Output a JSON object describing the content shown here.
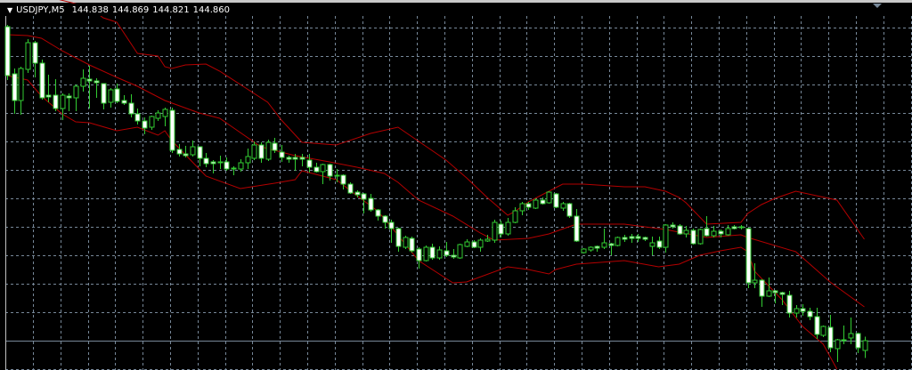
{
  "header": {
    "symbol": "USDJPY,M5",
    "open": "144.838",
    "high": "144.869",
    "low": "144.821",
    "close": "144.860",
    "menu_icon": "triangle-down-icon"
  },
  "colors": {
    "background": "#000000",
    "grid": "#778899",
    "bull_body": "#000000",
    "bear_body": "#ffffff",
    "candle_outline": "#32cd32",
    "bands": "#b40000",
    "bid_line": "#778899"
  },
  "chart_data": {
    "type": "candlestick",
    "timeframe": "M5",
    "grid": true,
    "bid": 144.86,
    "candles": [
      [
        145.566,
        145.57,
        145.446,
        145.456
      ],
      [
        145.46,
        145.472,
        145.37,
        145.4
      ],
      [
        145.4,
        145.476,
        145.368,
        145.472
      ],
      [
        145.47,
        145.538,
        145.462,
        145.53
      ],
      [
        145.53,
        145.534,
        145.452,
        145.484
      ],
      [
        145.484,
        145.492,
        145.402,
        145.406
      ],
      [
        145.412,
        145.458,
        145.396,
        145.408
      ],
      [
        145.412,
        145.448,
        145.376,
        145.382
      ],
      [
        145.382,
        145.416,
        145.356,
        145.412
      ],
      [
        145.41,
        145.416,
        145.376,
        145.406
      ],
      [
        145.406,
        145.436,
        145.376,
        145.432
      ],
      [
        145.432,
        145.47,
        145.42,
        145.45
      ],
      [
        145.448,
        145.478,
        145.382,
        145.444
      ],
      [
        145.444,
        145.45,
        145.406,
        145.44
      ],
      [
        145.438,
        145.438,
        145.38,
        145.394
      ],
      [
        145.396,
        145.428,
        145.384,
        145.424
      ],
      [
        145.426,
        145.438,
        145.394,
        145.398
      ],
      [
        145.4,
        145.412,
        145.39,
        145.394
      ],
      [
        145.394,
        145.414,
        145.362,
        145.37
      ],
      [
        145.37,
        145.382,
        145.346,
        145.354
      ],
      [
        145.354,
        145.362,
        145.324,
        145.338
      ],
      [
        145.34,
        145.366,
        145.334,
        145.364
      ],
      [
        145.36,
        145.378,
        145.354,
        145.372
      ],
      [
        145.364,
        145.384,
        145.342,
        145.38
      ],
      [
        145.378,
        145.384,
        145.282,
        145.288
      ],
      [
        145.29,
        145.302,
        145.274,
        145.28
      ],
      [
        145.28,
        145.298,
        145.272,
        145.276
      ],
      [
        145.278,
        145.31,
        145.274,
        145.296
      ],
      [
        145.296,
        145.296,
        145.252,
        145.27
      ],
      [
        145.27,
        145.282,
        145.25,
        145.258
      ],
      [
        145.262,
        145.266,
        145.236,
        145.258
      ],
      [
        145.262,
        145.276,
        145.246,
        145.26
      ],
      [
        145.262,
        145.272,
        145.242,
        145.246
      ],
      [
        145.248,
        145.252,
        145.232,
        145.246
      ],
      [
        145.246,
        145.268,
        145.24,
        145.26
      ],
      [
        145.26,
        145.292,
        145.246,
        145.274
      ],
      [
        145.27,
        145.308,
        145.266,
        145.3
      ],
      [
        145.3,
        145.306,
        145.26,
        145.27
      ],
      [
        145.268,
        145.312,
        145.264,
        145.306
      ],
      [
        145.304,
        145.316,
        145.282,
        145.288
      ],
      [
        145.284,
        145.3,
        145.262,
        145.272
      ],
      [
        145.272,
        145.276,
        145.26,
        145.268
      ],
      [
        145.272,
        145.28,
        145.242,
        145.268
      ],
      [
        145.272,
        145.28,
        145.252,
        145.268
      ],
      [
        145.266,
        145.28,
        145.238,
        145.25
      ],
      [
        145.25,
        145.26,
        145.238,
        145.24
      ],
      [
        145.24,
        145.258,
        145.212,
        145.256
      ],
      [
        145.256,
        145.258,
        145.22,
        145.23
      ],
      [
        145.232,
        145.246,
        145.216,
        145.23
      ],
      [
        145.232,
        145.234,
        145.2,
        145.212
      ],
      [
        145.212,
        145.216,
        145.19,
        145.192
      ],
      [
        145.194,
        145.198,
        145.182,
        145.188
      ],
      [
        145.19,
        145.192,
        145.146,
        145.178
      ],
      [
        145.18,
        145.19,
        145.15,
        145.154
      ],
      [
        145.154,
        145.156,
        145.13,
        145.14
      ],
      [
        145.14,
        145.142,
        145.112,
        145.126
      ],
      [
        145.126,
        145.132,
        145.08,
        145.112
      ],
      [
        145.112,
        145.114,
        145.06,
        145.072
      ],
      [
        145.07,
        145.096,
        145.066,
        145.092
      ],
      [
        145.09,
        145.094,
        145.058,
        145.062
      ],
      [
        145.066,
        145.07,
        145.022,
        145.04
      ],
      [
        145.04,
        145.074,
        145.038,
        145.07
      ],
      [
        145.07,
        145.078,
        145.042,
        145.046
      ],
      [
        145.046,
        145.072,
        145.042,
        145.064
      ],
      [
        145.062,
        145.082,
        145.048,
        145.052
      ],
      [
        145.052,
        145.066,
        145.044,
        145.048
      ],
      [
        145.046,
        145.078,
        145.044,
        145.076
      ],
      [
        145.072,
        145.088,
        145.07,
        145.082
      ],
      [
        145.082,
        145.086,
        145.068,
        145.07
      ],
      [
        145.07,
        145.09,
        145.06,
        145.086
      ],
      [
        145.084,
        145.098,
        145.082,
        145.088
      ],
      [
        145.086,
        145.132,
        145.08,
        145.126
      ],
      [
        145.122,
        145.13,
        145.092,
        145.1
      ],
      [
        145.1,
        145.136,
        145.096,
        145.126
      ],
      [
        145.126,
        145.16,
        145.124,
        145.152
      ],
      [
        145.152,
        145.172,
        145.142,
        145.168
      ],
      [
        145.168,
        145.172,
        145.154,
        145.16
      ],
      [
        145.158,
        145.18,
        145.156,
        145.176
      ],
      [
        145.176,
        145.182,
        145.166,
        145.168
      ],
      [
        145.17,
        145.196,
        145.168,
        145.194
      ],
      [
        145.19,
        145.192,
        145.158,
        145.16
      ],
      [
        145.158,
        145.172,
        145.152,
        145.168
      ],
      [
        145.168,
        145.17,
        145.136,
        145.14
      ],
      [
        145.14,
        145.156,
        145.082,
        145.084
      ],
      [
        145.058,
        145.068,
        145.056,
        145.066
      ],
      [
        145.064,
        145.072,
        145.06,
        145.07
      ],
      [
        145.072,
        145.074,
        145.06,
        145.068
      ],
      [
        145.07,
        145.112,
        145.066,
        145.08
      ],
      [
        145.078,
        145.08,
        145.052,
        145.074
      ],
      [
        145.074,
        145.094,
        145.072,
        145.092
      ],
      [
        145.092,
        145.098,
        145.082,
        145.088
      ],
      [
        145.094,
        145.1,
        145.08,
        145.09
      ],
      [
        145.094,
        145.1,
        145.082,
        145.09
      ],
      [
        145.092,
        145.094,
        145.084,
        145.088
      ],
      [
        145.072,
        145.094,
        145.052,
        145.08
      ],
      [
        145.084,
        145.094,
        145.066,
        145.07
      ],
      [
        145.07,
        145.122,
        145.058,
        145.12
      ],
      [
        145.12,
        145.126,
        145.112,
        145.116
      ],
      [
        145.118,
        145.122,
        145.098,
        145.1
      ],
      [
        145.1,
        145.118,
        145.092,
        145.108
      ],
      [
        145.108,
        145.112,
        145.076,
        145.078
      ],
      [
        145.078,
        145.112,
        145.076,
        145.11
      ],
      [
        145.112,
        145.14,
        145.094,
        145.096
      ],
      [
        145.096,
        145.118,
        145.092,
        145.106
      ],
      [
        145.106,
        145.11,
        145.092,
        145.1
      ],
      [
        145.098,
        145.12,
        145.096,
        145.112
      ],
      [
        145.116,
        145.12,
        145.11,
        145.112
      ],
      [
        145.114,
        145.12,
        145.11,
        145.116
      ],
      [
        145.112,
        145.114,
        144.978,
        144.99
      ],
      [
        144.99,
        145.034,
        144.978,
        144.996
      ],
      [
        144.996,
        144.998,
        144.936,
        144.96
      ],
      [
        144.96,
        145.002,
        144.958,
        144.972
      ],
      [
        144.972,
        144.974,
        144.944,
        144.968
      ],
      [
        144.968,
        144.97,
        144.94,
        144.964
      ],
      [
        144.962,
        144.972,
        144.912,
        144.922
      ],
      [
        144.922,
        144.94,
        144.912,
        144.932
      ],
      [
        144.932,
        144.942,
        144.916,
        144.926
      ],
      [
        144.926,
        144.934,
        144.906,
        144.914
      ],
      [
        144.914,
        144.934,
        144.864,
        144.874
      ],
      [
        144.872,
        144.894,
        144.868,
        144.892
      ],
      [
        144.89,
        144.918,
        144.834,
        144.844
      ],
      [
        144.842,
        144.864,
        144.812,
        144.862
      ],
      [
        144.862,
        144.894,
        144.852,
        144.86
      ],
      [
        144.866,
        144.912,
        144.852,
        144.876
      ],
      [
        144.876,
        144.878,
        144.832,
        144.844
      ],
      [
        144.838,
        144.869,
        144.821,
        144.86
      ]
    ],
    "candle_fields": [
      "open",
      "high",
      "low",
      "close"
    ],
    "bands": {
      "upper": [
        [
          1,
          145.656
        ],
        [
          13,
          145.61
        ],
        [
          15,
          145.586
        ],
        [
          17,
          145.576
        ],
        [
          20,
          145.506
        ],
        [
          23,
          145.5
        ],
        [
          24,
          145.476
        ],
        [
          25,
          145.472
        ],
        [
          27,
          145.48
        ],
        [
          30,
          145.482
        ],
        [
          32,
          145.466
        ],
        [
          36,
          145.426
        ],
        [
          39,
          145.396
        ],
        [
          41,
          145.356
        ],
        [
          44,
          145.306
        ],
        [
          49,
          145.3
        ],
        [
          54,
          145.326
        ],
        [
          58,
          145.34
        ],
        [
          65,
          145.266
        ],
        [
          68,
          145.226
        ],
        [
          71,
          145.182
        ],
        [
          74,
          145.142
        ],
        [
          75,
          145.15
        ],
        [
          77,
          145.172
        ],
        [
          80,
          145.196
        ],
        [
          82,
          145.212
        ],
        [
          85,
          145.212
        ],
        [
          91,
          145.206
        ],
        [
          94,
          145.206
        ],
        [
          97,
          145.196
        ],
        [
          99,
          145.182
        ],
        [
          100,
          145.17
        ],
        [
          103,
          145.122
        ],
        [
          108,
          145.126
        ],
        [
          109,
          145.146
        ],
        [
          111,
          145.166
        ],
        [
          113,
          145.18
        ],
        [
          116,
          145.196
        ],
        [
          122,
          145.176
        ],
        [
          126,
          145.088
        ]
      ],
      "middle": [
        [
          1,
          145.548
        ],
        [
          4,
          145.546
        ],
        [
          6,
          145.54
        ],
        [
          9,
          145.512
        ],
        [
          13,
          145.48
        ],
        [
          17,
          145.452
        ],
        [
          20,
          145.432
        ],
        [
          24,
          145.4
        ],
        [
          29,
          145.372
        ],
        [
          32,
          145.36
        ],
        [
          38,
          145.296
        ],
        [
          43,
          145.276
        ],
        [
          48,
          145.262
        ],
        [
          52,
          145.25
        ],
        [
          56,
          145.236
        ],
        [
          58,
          145.216
        ],
        [
          61,
          145.176
        ],
        [
          66,
          145.14
        ],
        [
          70,
          145.102
        ],
        [
          72,
          145.086
        ],
        [
          77,
          145.09
        ],
        [
          80,
          145.1
        ],
        [
          84,
          145.122
        ],
        [
          91,
          145.122
        ],
        [
          97,
          145.11
        ],
        [
          103,
          145.092
        ],
        [
          108,
          145.098
        ],
        [
          109,
          145.092
        ],
        [
          116,
          145.06
        ],
        [
          121,
          144.992
        ],
        [
          126,
          144.936
        ]
      ],
      "lower": [
        [
          1,
          145.456
        ],
        [
          4,
          145.446
        ],
        [
          6,
          145.41
        ],
        [
          9,
          145.37
        ],
        [
          11,
          145.352
        ],
        [
          13,
          145.35
        ],
        [
          17,
          145.332
        ],
        [
          20,
          145.34
        ],
        [
          23,
          145.322
        ],
        [
          24,
          145.332
        ],
        [
          25,
          145.31
        ],
        [
          29,
          145.246
        ],
        [
          30,
          145.23
        ],
        [
          35,
          145.202
        ],
        [
          40,
          145.214
        ],
        [
          43,
          145.222
        ],
        [
          44,
          145.242
        ],
        [
          49,
          145.222
        ],
        [
          52,
          145.186
        ],
        [
          55,
          145.152
        ],
        [
          57,
          145.116
        ],
        [
          61,
          145.04
        ],
        [
          66,
          144.99
        ],
        [
          68,
          144.992
        ],
        [
          74,
          145.026
        ],
        [
          77,
          145.02
        ],
        [
          80,
          145.01
        ],
        [
          81,
          145.02
        ],
        [
          84,
          145.032
        ],
        [
          91,
          145.04
        ],
        [
          96,
          145.026
        ],
        [
          99,
          145.032
        ],
        [
          102,
          145.052
        ],
        [
          105,
          145.062
        ],
        [
          108,
          145.07
        ],
        [
          109,
          145.06
        ],
        [
          110,
          145.016
        ],
        [
          114,
          144.952
        ],
        [
          117,
          144.892
        ],
        [
          120,
          144.852
        ],
        [
          122,
          144.796
        ]
      ]
    }
  }
}
